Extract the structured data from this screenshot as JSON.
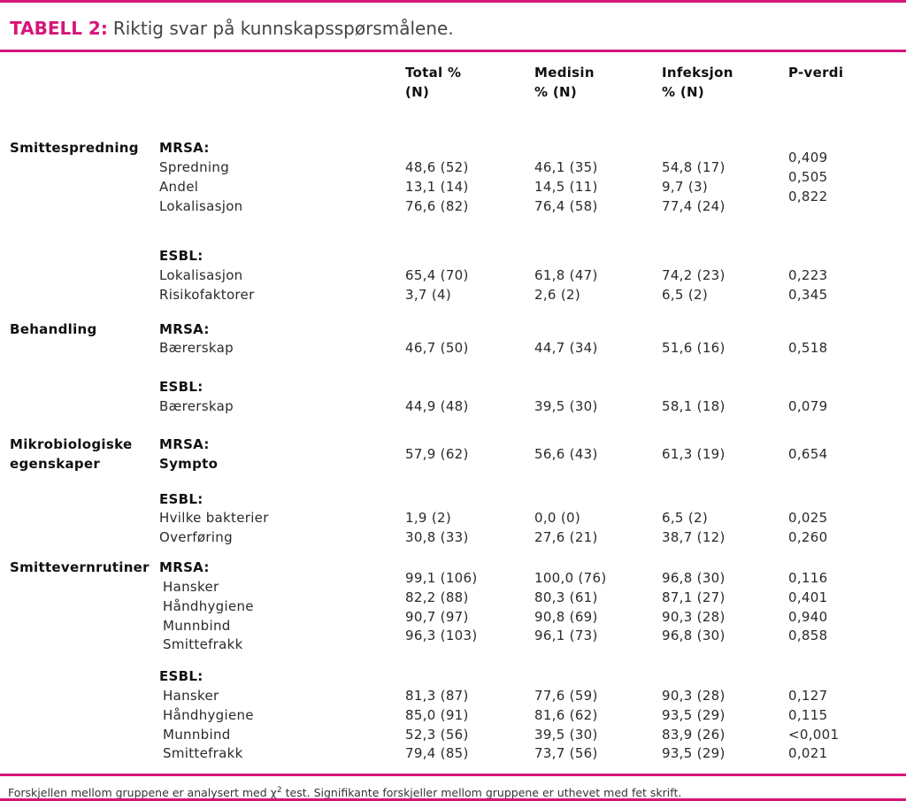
{
  "title": {
    "label": "TABELL 2:",
    "text": "Riktig svar på kunnskapsspørsmålene."
  },
  "columns": [
    [
      "Total %",
      "(N)"
    ],
    [
      "Medisin",
      "% (N)"
    ],
    [
      "Infeksjon",
      "% (N)"
    ],
    [
      "P-verdi"
    ]
  ],
  "sections": [
    {
      "category": [
        "Smittespredning"
      ],
      "groups": [
        {
          "organism": "MRSA:",
          "rows": [
            [
              "Spredning",
              "48,6 (52)",
              "46,1 (35)",
              "54,8 (17)",
              "0,409"
            ],
            [
              "Andel",
              "13,1 (14)",
              "14,5 (11)",
              "9,7 (3)",
              "0,505"
            ],
            [
              "Lokalisasjon",
              "76,6 (82)",
              "76,4 (58)",
              "77,4 (24)",
              "0,822"
            ]
          ]
        },
        {
          "organism": "ESBL:",
          "rows": [
            [
              "Lokalisasjon",
              "65,4 (70)",
              "61,8 (47)",
              "74,2 (23)",
              "0,223"
            ],
            [
              "Risikofaktorer",
              "3,7 (4)",
              "2,6 (2)",
              "6,5 (2)",
              "0,345"
            ]
          ]
        }
      ]
    },
    {
      "category": [
        "Behandling"
      ],
      "groups": [
        {
          "organism": "MRSA:",
          "rows": [
            [
              "Bærerskap",
              "46,7 (50)",
              "44,7 (34)",
              "51,6 (16)",
              "0,518"
            ]
          ]
        },
        {
          "organism": "ESBL:",
          "rows": [
            [
              "Bærerskap",
              "44,9 (48)",
              "39,5 (30)",
              "58,1 (18)",
              "0,079"
            ]
          ]
        }
      ]
    },
    {
      "category": [
        "Mikrobiologiske",
        "egenskaper"
      ],
      "groups": [
        {
          "organism": "MRSA:",
          "bold": true,
          "rows": [
            [
              "Sympto",
              "57,9 (62)",
              "56,6 (43)",
              "61,3 (19)",
              "0,654"
            ]
          ]
        },
        {
          "organism": "ESBL:",
          "rows": [
            [
              "Hvilke bakterier",
              "1,9 (2)",
              "0,0 (0)",
              "6,5 (2)",
              "0,025"
            ],
            [
              "Overføring",
              "30,8 (33)",
              "27,6 (21)",
              "38,7 (12)",
              "0,260"
            ]
          ]
        }
      ]
    },
    {
      "category": [
        "Smittevernrutiner"
      ],
      "groups": [
        {
          "organism": "MRSA:",
          "rows": [
            [
              "Hansker",
              "99,1 (106)",
              "100,0 (76)",
              "96,8 (30)",
              "0,116"
            ],
            [
              "Håndhygiene",
              "82,2 (88)",
              "80,3 (61)",
              "87,1 (27)",
              "0,401"
            ],
            [
              "Munnbind",
              "90,7 (97)",
              "90,8 (69)",
              "90,3 (28)",
              "0,940"
            ],
            [
              "Smittefrakk",
              "96,3 (103)",
              "96,1 (73)",
              "96,8 (30)",
              "0,858"
            ]
          ]
        },
        {
          "organism": "ESBL:",
          "rows": [
            [
              "Hansker",
              "81,3 (87)",
              "77,6 (59)",
              "90,3 (28)",
              "0,127"
            ],
            [
              "Håndhygiene",
              "85,0 (91)",
              "81,6 (62)",
              "93,5 (29)",
              "0,115"
            ],
            [
              "Munnbind",
              "52,3 (56)",
              "39,5 (30)",
              "83,9 (26)",
              "<0,001"
            ],
            [
              "Smittefrakk",
              "79,4 (85)",
              "73,7 (56)",
              "93,5 (29)",
              "0,021"
            ]
          ]
        }
      ]
    }
  ],
  "footnote": {
    "before": "Forskjellen mellom gruppene er analysert med",
    "symbol": "χ",
    "sup": "2",
    "after": "test. Signifikante forskjeller mellom gruppene er uthevet med fet skrift."
  }
}
